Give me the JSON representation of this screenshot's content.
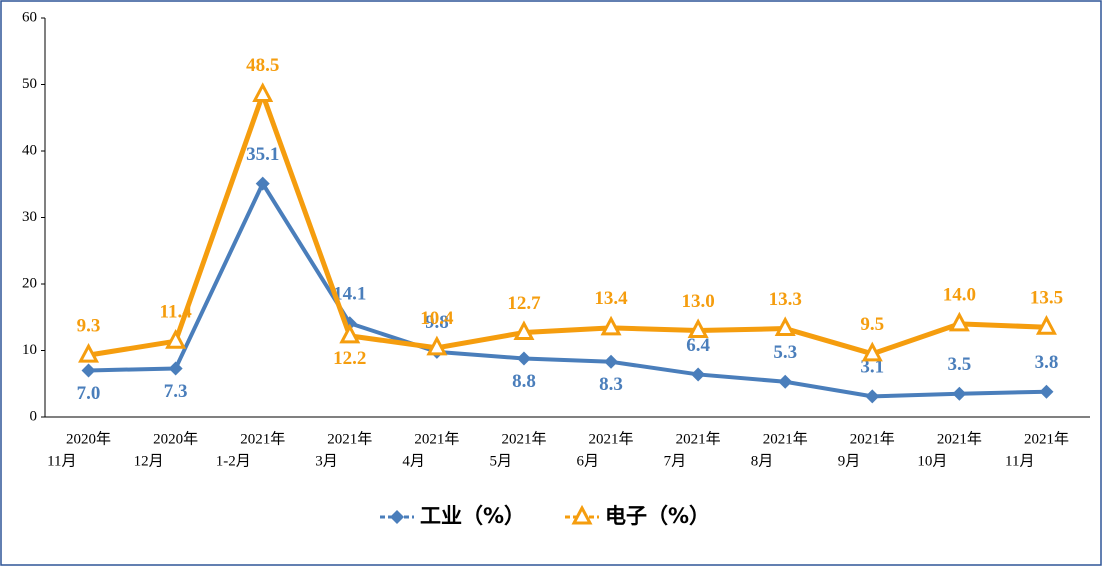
{
  "chart_data": {
    "type": "line",
    "categories": [
      [
        "2020年",
        "11月"
      ],
      [
        "2020年",
        "12月"
      ],
      [
        "2021年",
        "1-2月"
      ],
      [
        "2021年",
        "3月"
      ],
      [
        "2021年",
        "4月"
      ],
      [
        "2021年",
        "5月"
      ],
      [
        "2021年",
        "6月"
      ],
      [
        "2021年",
        "7月"
      ],
      [
        "2021年",
        "8月"
      ],
      [
        "2021年",
        "9月"
      ],
      [
        "2021年",
        "10月"
      ],
      [
        "2021年",
        "11月"
      ]
    ],
    "series": [
      {
        "name": "工业（%）",
        "color": "#4a7ebb",
        "marker": "diamond",
        "values": [
          7.0,
          7.3,
          35.1,
          14.1,
          9.8,
          8.8,
          8.3,
          6.4,
          5.3,
          3.1,
          3.5,
          3.8
        ],
        "value_labels": [
          "7.0",
          "7.3",
          "35.1",
          "14.1",
          "9.8",
          "8.8",
          "8.3",
          "6.4",
          "5.3",
          "3.1",
          "3.5",
          "3.8"
        ]
      },
      {
        "name": "电子（%）",
        "color": "#f59d0e",
        "marker": "triangle",
        "values": [
          9.3,
          11.4,
          48.5,
          12.2,
          10.4,
          12.7,
          13.4,
          13.0,
          13.3,
          9.5,
          14.0,
          13.5
        ],
        "value_labels": [
          "9.3",
          "11.4",
          "48.5",
          "12.2",
          "10.4",
          "12.7",
          "13.4",
          "13.0",
          "13.3",
          "9.5",
          "14.0",
          "13.5"
        ]
      }
    ],
    "ylim": [
      0,
      60
    ],
    "yticks": [
      0,
      10,
      20,
      30,
      40,
      50,
      60
    ],
    "grid": false,
    "legend": "bottom"
  }
}
